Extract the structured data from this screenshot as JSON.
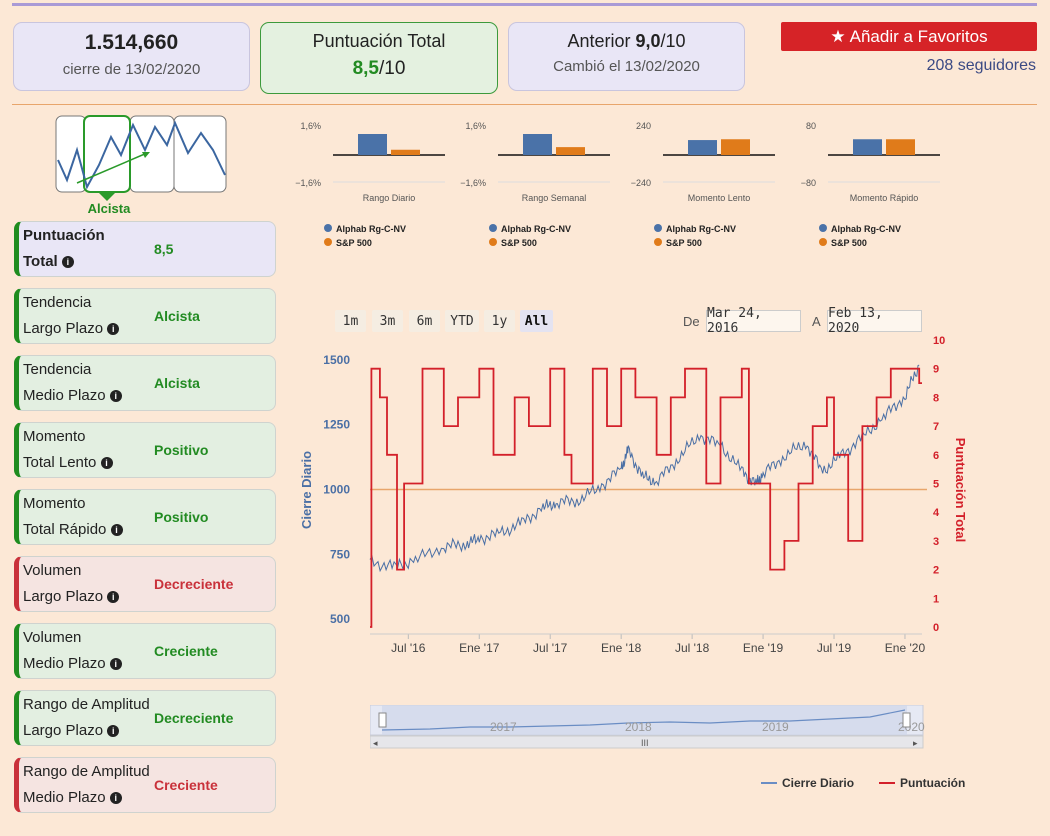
{
  "header": {
    "price": "1.514,660",
    "close_date": "cierre de 13/02/2020",
    "total_title": "Puntuación Total",
    "total_score": "8,5",
    "total_suffix": "/10",
    "prev_label": "Anterior",
    "prev_score": "9,0",
    "prev_suffix": "/10",
    "changed": "Cambió el 13/02/2020",
    "fav_label": "Añadir a Favoritos",
    "followers": "208 seguidores"
  },
  "trend_label": "Alcista",
  "metrics": [
    {
      "l1": "Puntuación",
      "l2": "Total",
      "value": "8,5",
      "style": "b"
    },
    {
      "l1": "Tendencia",
      "l2": "Largo Plazo",
      "value": "Alcista",
      "style": "g"
    },
    {
      "l1": "Tendencia",
      "l2": "Medio Plazo",
      "value": "Alcista",
      "style": "g"
    },
    {
      "l1": "Momento",
      "l2": "Total Lento",
      "value": "Positivo",
      "style": "g"
    },
    {
      "l1": "Momento",
      "l2": "Total Rápido",
      "value": "Positivo",
      "style": "g"
    },
    {
      "l1": "Volumen",
      "l2": "Largo Plazo",
      "value": "Decreciente",
      "style": "r"
    },
    {
      "l1": "Volumen",
      "l2": "Medio Plazo",
      "value": "Creciente",
      "style": "g"
    },
    {
      "l1": "Rango de Amplitud",
      "l2": "Largo Plazo",
      "value": "Decreciente",
      "style": "g"
    },
    {
      "l1": "Rango de Amplitud",
      "l2": "Medio Plazo",
      "value": "Creciente",
      "style": "r"
    }
  ],
  "colors": {
    "series_a": "#4a72a8",
    "series_b": "#e07b1a",
    "score": "#d3202a",
    "close": "#4a6fa5",
    "threshold": "#e8a56b"
  },
  "chart_data": [
    {
      "type": "bar",
      "title": "Rango Diario",
      "ymax_label": "1,6%",
      "ymin_label": "−1,6%",
      "ylim": [
        -1.6,
        1.6
      ],
      "series": [
        {
          "name": "Alphab Rg-C-NV",
          "values": [
            1.2
          ]
        },
        {
          "name": "S&P 500",
          "values": [
            0.3
          ]
        }
      ]
    },
    {
      "type": "bar",
      "title": "Rango Semanal",
      "ymax_label": "1,6%",
      "ymin_label": "−1,6%",
      "ylim": [
        -1.6,
        1.6
      ],
      "series": [
        {
          "name": "Alphab Rg-C-NV",
          "values": [
            1.2
          ]
        },
        {
          "name": "S&P 500",
          "values": [
            0.45
          ]
        }
      ]
    },
    {
      "type": "bar",
      "title": "Momento Lento",
      "ymax_label": "240",
      "ymin_label": "−240",
      "ylim": [
        -240,
        240
      ],
      "series": [
        {
          "name": "Alphab Rg-C-NV",
          "values": [
            128
          ]
        },
        {
          "name": "S&P 500",
          "values": [
            135
          ]
        }
      ]
    },
    {
      "type": "bar",
      "title": "Momento Rápido",
      "ymax_label": "80",
      "ymin_label": "−80",
      "ylim": [
        -80,
        80
      ],
      "series": [
        {
          "name": "Alphab Rg-C-NV",
          "values": [
            45
          ]
        },
        {
          "name": "S&P 500",
          "values": [
            45
          ]
        }
      ]
    },
    {
      "type": "line",
      "range_buttons": [
        "1m",
        "3m",
        "6m",
        "YTD",
        "1y",
        "All"
      ],
      "selected_range": "All",
      "from_label": "De",
      "from_date": "Mar 24, 2016",
      "to_label": "A",
      "to_date": "Feb 13, 2020",
      "ylabel_left": "Cierre Diario",
      "ylabel_right": "Puntuación Total",
      "yleft_ticks": [
        500,
        750,
        1000,
        1250,
        1500
      ],
      "yright_ticks": [
        0,
        1,
        2,
        3,
        4,
        5,
        6,
        7,
        8,
        9,
        10
      ],
      "x_ticks": [
        "Jul '16",
        "Ene '17",
        "Jul '17",
        "Ene '18",
        "Jul '18",
        "Ene '19",
        "Jul '19",
        "Ene '20"
      ],
      "threshold": 1000,
      "legend": [
        "Cierre Diario",
        "Puntuación"
      ],
      "close": {
        "x": [
          2016.23,
          2016.4,
          2016.55,
          2016.75,
          2016.9,
          2017.0,
          2017.15,
          2017.3,
          2017.45,
          2017.55,
          2017.7,
          2017.85,
          2018.0,
          2018.05,
          2018.15,
          2018.25,
          2018.4,
          2018.55,
          2018.7,
          2018.85,
          2018.95,
          2019.0,
          2019.15,
          2019.3,
          2019.42,
          2019.55,
          2019.7,
          2019.85,
          2020.0,
          2020.1
        ],
        "y": [
          720,
          700,
          730,
          780,
          790,
          810,
          830,
          870,
          930,
          950,
          960,
          1010,
          1080,
          1150,
          1050,
          1030,
          1120,
          1210,
          1170,
          1070,
          1020,
          1060,
          1130,
          1180,
          1070,
          1130,
          1200,
          1280,
          1360,
          1480
        ]
      },
      "score": {
        "x": [
          2016.23,
          2016.24,
          2016.3,
          2016.35,
          2016.42,
          2016.47,
          2016.6,
          2016.75,
          2016.85,
          2017.0,
          2017.1,
          2017.25,
          2017.35,
          2017.5,
          2017.6,
          2017.65,
          2017.8,
          2017.9,
          2018.0,
          2018.1,
          2018.25,
          2018.35,
          2018.45,
          2018.6,
          2018.7,
          2018.85,
          2018.9,
          2019.05,
          2019.15,
          2019.25,
          2019.35,
          2019.45,
          2019.5,
          2019.6,
          2019.7,
          2019.8,
          2019.9,
          2020.0,
          2020.1
        ],
        "y": [
          0,
          9,
          8,
          6,
          2,
          5,
          9,
          7,
          8,
          9,
          6,
          8,
          7,
          9,
          6,
          5,
          9,
          7,
          9,
          8,
          6,
          8,
          9,
          5,
          8,
          9,
          5,
          2,
          3,
          5,
          7,
          8,
          6,
          3,
          7,
          8,
          9,
          9,
          8.5
        ]
      }
    }
  ]
}
